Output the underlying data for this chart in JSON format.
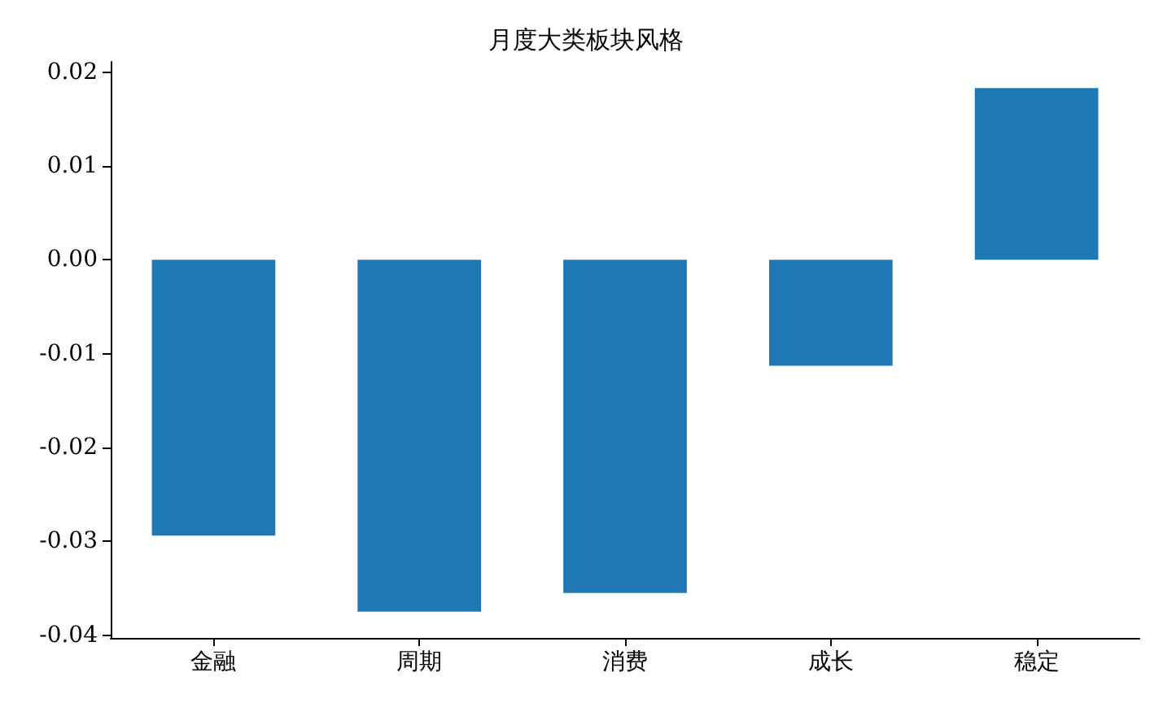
{
  "chart_data": {
    "type": "bar",
    "title": "月度大类板块风格",
    "categories": [
      "金融",
      "周期",
      "消费",
      "成长",
      "稳定"
    ],
    "values": [
      -0.0294,
      -0.0375,
      -0.0355,
      -0.0113,
      0.0183
    ],
    "color": "#1f77b4",
    "ylim": [
      -0.0403,
      0.0211
    ],
    "yticks": [
      {
        "value": -0.04,
        "label": "-0.04"
      },
      {
        "value": -0.03,
        "label": "-0.03"
      },
      {
        "value": -0.02,
        "label": "-0.02"
      },
      {
        "value": -0.01,
        "label": "-0.01"
      },
      {
        "value": 0,
        "label": "0.00"
      },
      {
        "value": 0.01,
        "label": "0.01"
      },
      {
        "value": 0.02,
        "label": "0.02"
      }
    ],
    "grid": false
  }
}
